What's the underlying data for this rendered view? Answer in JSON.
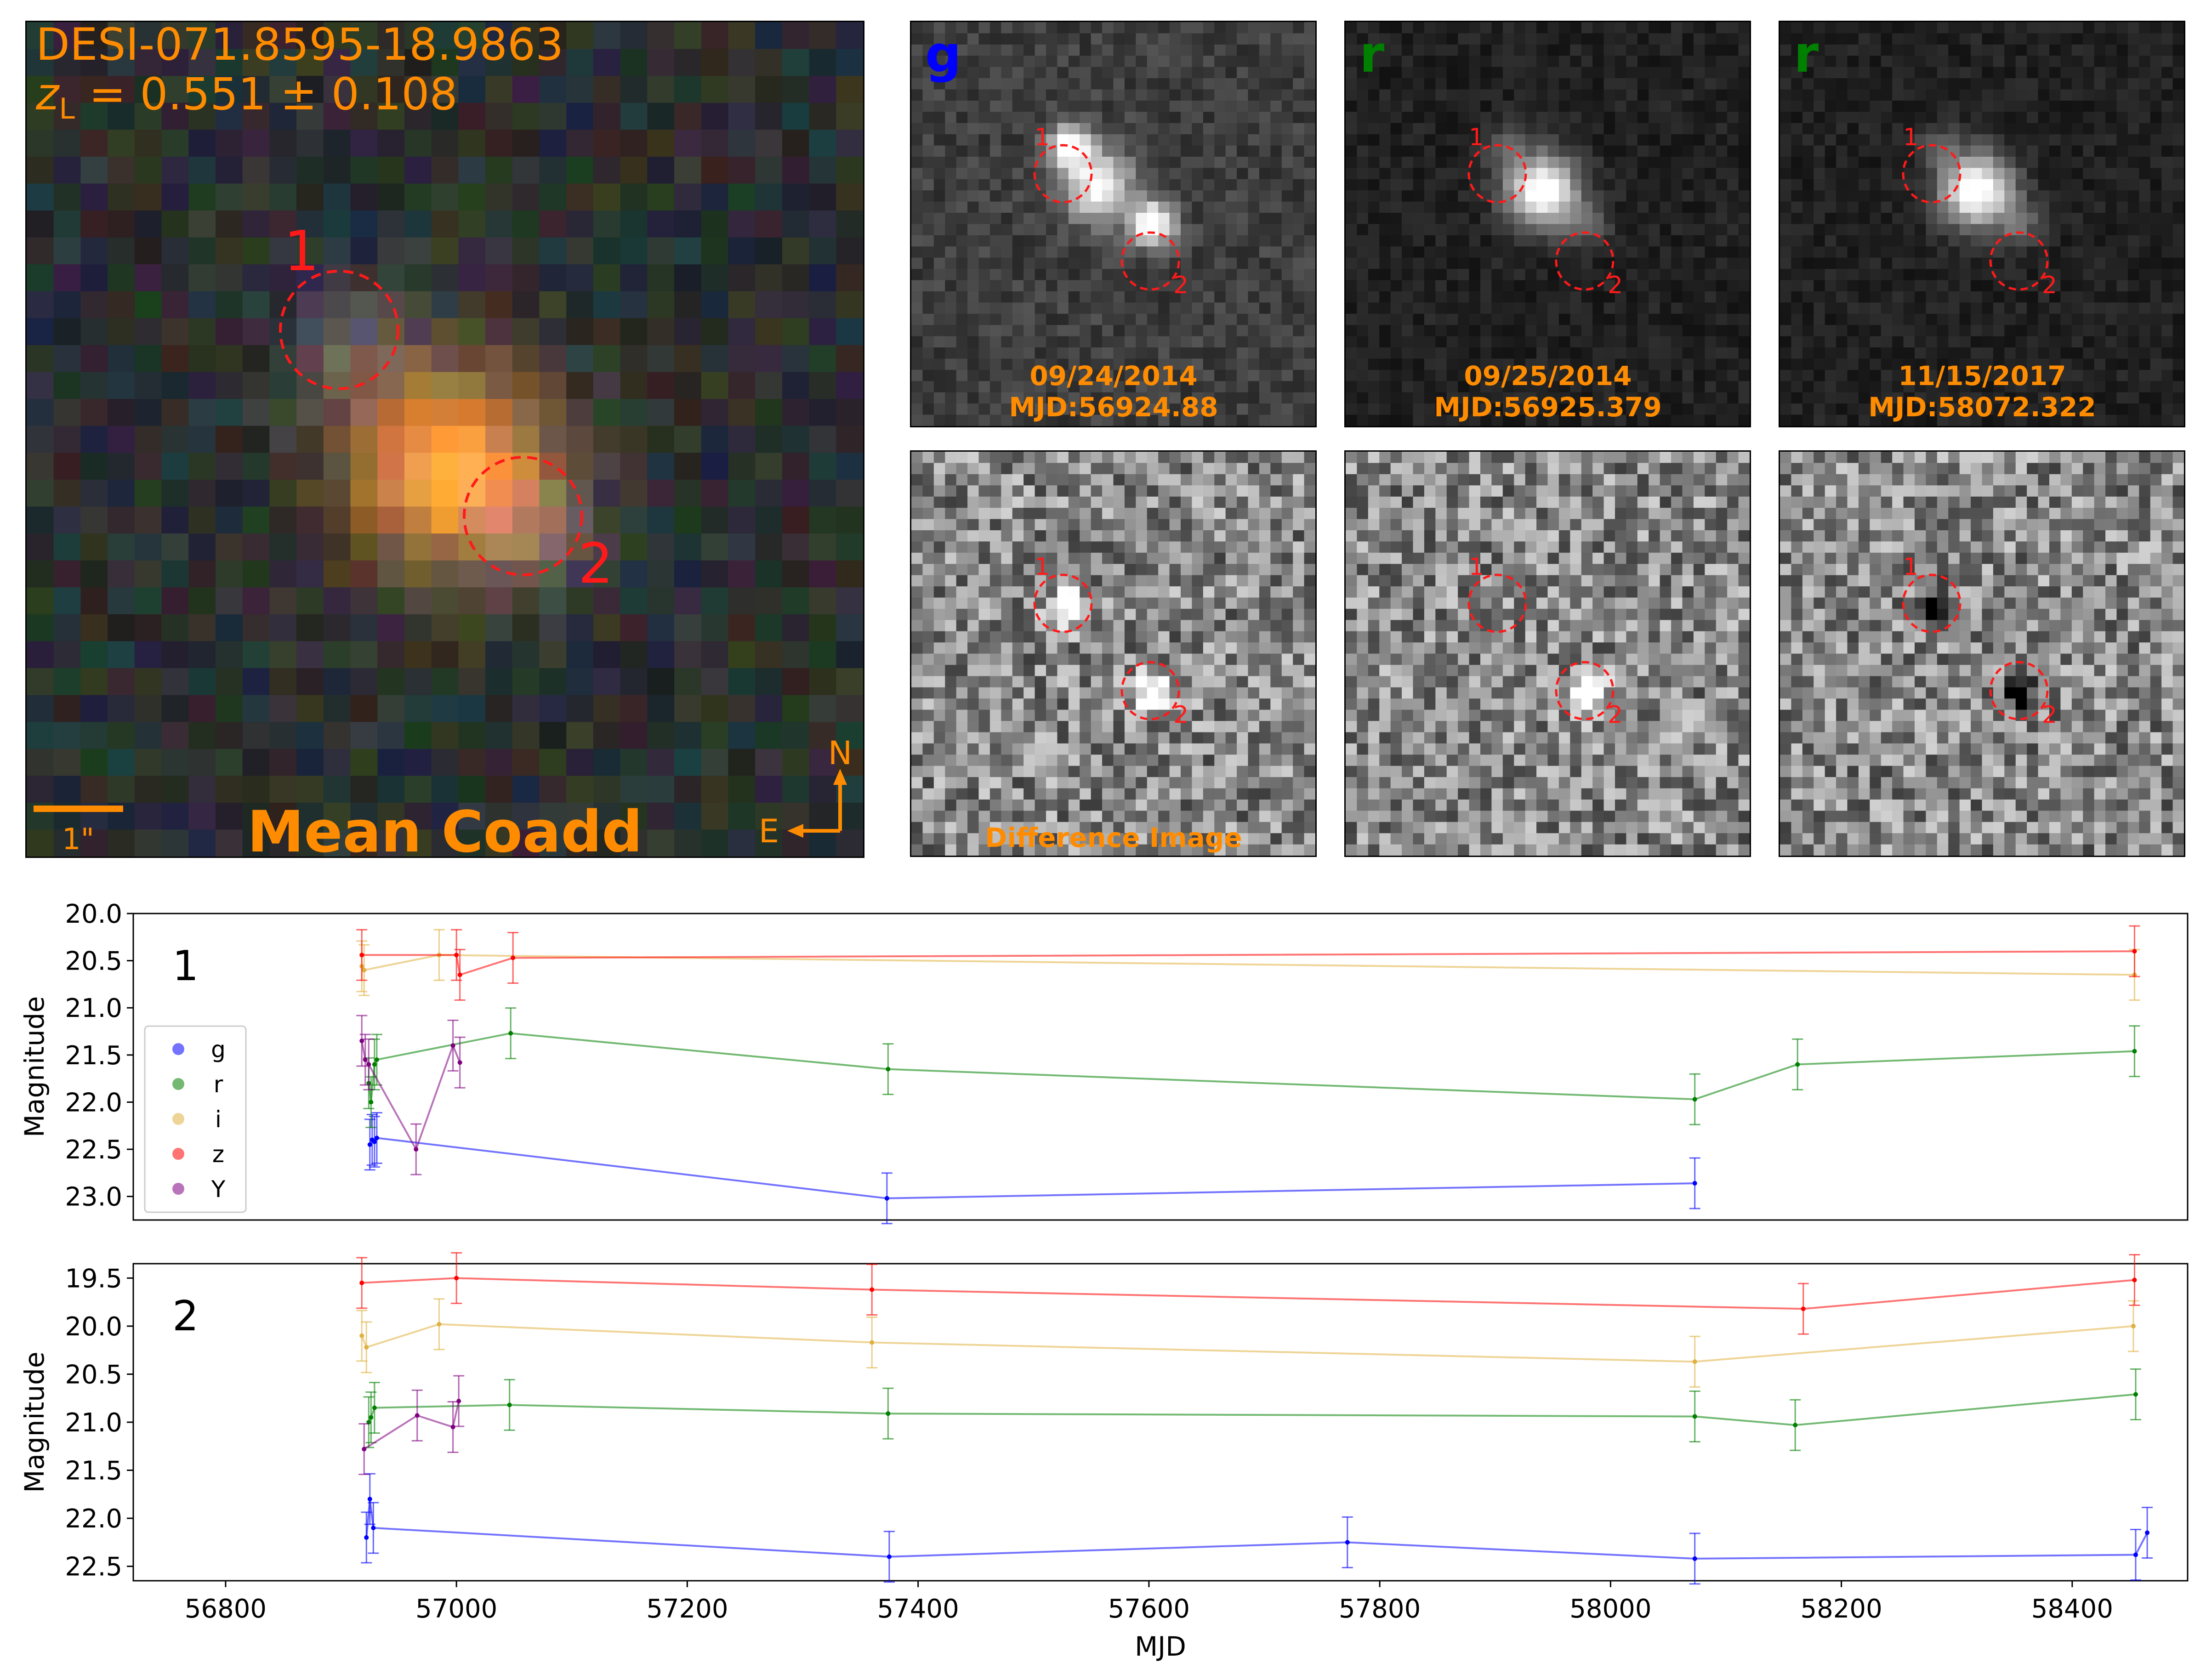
{
  "coadd": {
    "name": "DESI-071.8595-18.9863",
    "redshift_label": "z",
    "redshift_sub": "L",
    "redshift_value": " = 0.551 ± 0.108",
    "caption": "Mean Coadd",
    "scale_label": "1\"",
    "compass_n": "N",
    "compass_e": "E",
    "marker_1": "1",
    "marker_2": "2",
    "colors": {
      "label": "#ff8c00",
      "marker": "#ff1a1a"
    }
  },
  "epochs": [
    {
      "band": "g",
      "band_color": "#0000ff",
      "date": "09/24/2014",
      "mjd": "MJD:56924.88"
    },
    {
      "band": "r",
      "band_color": "#008000",
      "date": "09/25/2014",
      "mjd": "MJD:56925.379"
    },
    {
      "band": "r",
      "band_color": "#008000",
      "date": "11/15/2017",
      "mjd": "MJD:58072.322"
    }
  ],
  "difference_label": "Difference Image",
  "chart_data": [
    {
      "type": "line",
      "panel_label": "1",
      "xlabel": "",
      "ylabel": "Magnitude",
      "xlim": [
        56720,
        58500
      ],
      "ylim": [
        23.25,
        20.0
      ],
      "yticks": [
        "20.0",
        "20.5",
        "21.0",
        "21.5",
        "22.0",
        "22.5",
        "23.0"
      ],
      "legend": {
        "placement": "left",
        "entries": [
          "g",
          "r",
          "i",
          "z",
          "Y"
        ]
      },
      "series": [
        {
          "name": "g",
          "color": "#0000ff",
          "points": [
            [
              56925,
              22.45
            ],
            [
              56927,
              22.4
            ],
            [
              56929,
              22.42
            ],
            [
              56931,
              22.38
            ],
            [
              57373,
              23.02
            ],
            [
              58073,
              22.86
            ]
          ]
        },
        {
          "name": "r",
          "color": "#008000",
          "points": [
            [
              56924,
              21.8
            ],
            [
              56926,
              22.0
            ],
            [
              56929,
              21.6
            ],
            [
              56931,
              21.55
            ],
            [
              57047,
              21.27
            ],
            [
              57374,
              21.65
            ],
            [
              58073,
              21.97
            ],
            [
              58162,
              21.6
            ],
            [
              58454,
              21.46
            ]
          ]
        },
        {
          "name": "i",
          "color": "#e0b040",
          "points": [
            [
              56918,
              20.56
            ],
            [
              56920,
              20.6
            ],
            [
              56985,
              20.44
            ],
            [
              58454,
              20.65
            ]
          ]
        },
        {
          "name": "z",
          "color": "#ff0000",
          "points": [
            [
              56918,
              20.44
            ],
            [
              57000,
              20.44
            ],
            [
              57003,
              20.65
            ],
            [
              57049,
              20.47
            ],
            [
              58454,
              20.4
            ]
          ]
        },
        {
          "name": "Y",
          "color": "#800080",
          "points": [
            [
              56918,
              21.35
            ],
            [
              56921,
              21.55
            ],
            [
              56924,
              21.6
            ],
            [
              56965,
              22.5
            ],
            [
              56997,
              21.4
            ],
            [
              57003,
              21.58
            ]
          ]
        }
      ]
    },
    {
      "type": "line",
      "panel_label": "2",
      "xlabel": "MJD",
      "ylabel": "Magnitude",
      "xlim": [
        56720,
        58500
      ],
      "ylim": [
        22.65,
        19.35
      ],
      "yticks": [
        "19.5",
        "20.0",
        "20.5",
        "21.0",
        "21.5",
        "22.0",
        "22.5"
      ],
      "xticks": [
        "56800",
        "57000",
        "57200",
        "57400",
        "57600",
        "57800",
        "58000",
        "58200",
        "58400"
      ],
      "series": [
        {
          "name": "g",
          "color": "#0000ff",
          "points": [
            [
              56922,
              22.2
            ],
            [
              56925,
              21.8
            ],
            [
              56928,
              22.1
            ],
            [
              57375,
              22.4
            ],
            [
              57772,
              22.25
            ],
            [
              58073,
              22.42
            ],
            [
              58455,
              22.38
            ],
            [
              58465,
              22.15
            ]
          ]
        },
        {
          "name": "r",
          "color": "#008000",
          "points": [
            [
              56924,
              21.0
            ],
            [
              56926,
              20.95
            ],
            [
              56929,
              20.85
            ],
            [
              57046,
              20.82
            ],
            [
              57374,
              20.91
            ],
            [
              58073,
              20.94
            ],
            [
              58160,
              21.03
            ],
            [
              58455,
              20.71
            ]
          ]
        },
        {
          "name": "i",
          "color": "#e0b040",
          "points": [
            [
              56918,
              20.1
            ],
            [
              56922,
              20.22
            ],
            [
              56985,
              19.98
            ],
            [
              57360,
              20.17
            ],
            [
              58073,
              20.37
            ],
            [
              58453,
              20.0
            ]
          ]
        },
        {
          "name": "z",
          "color": "#ff0000",
          "points": [
            [
              56918,
              19.55
            ],
            [
              57000,
              19.5
            ],
            [
              57360,
              19.62
            ],
            [
              58167,
              19.82
            ],
            [
              58454,
              19.52
            ]
          ]
        },
        {
          "name": "Y",
          "color": "#800080",
          "points": [
            [
              56920,
              21.28
            ],
            [
              56966,
              20.93
            ],
            [
              56997,
              21.05
            ],
            [
              57002,
              20.78
            ]
          ]
        }
      ]
    }
  ]
}
